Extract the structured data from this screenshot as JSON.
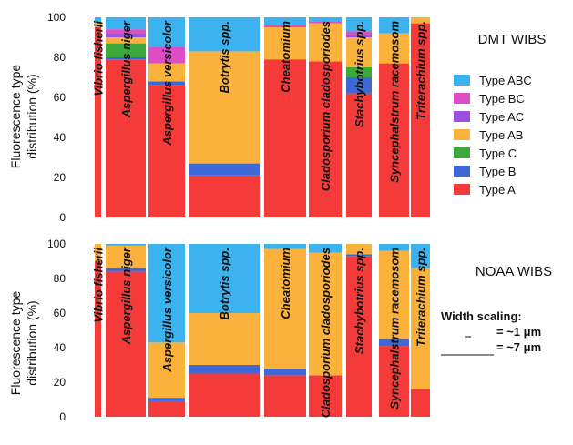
{
  "ylabel_line1": "Fluorescence type",
  "ylabel_line2": "distribution (%)",
  "colors": {
    "Type A": "#f53a3a",
    "Type B": "#3e68d8",
    "Type C": "#3aa83a",
    "Type AB": "#fbb23c",
    "Type AC": "#9a4fe0",
    "Type BC": "#dd4dc6",
    "Type ABC": "#3cb3ef"
  },
  "legend": {
    "entries": [
      "Type ABC",
      "Type BC",
      "Type AC",
      "Type AB",
      "Type C",
      "Type B",
      "Type A"
    ]
  },
  "width_scaling": {
    "title": "Width scaling:",
    "small": "= ~1 μm",
    "large": "= ~7 μm"
  },
  "chart_data": [
    {
      "type": "bar",
      "stacked": true,
      "variable_width": true,
      "title": "DMT WIBS",
      "ylabel": "Fluorescence type distribution (%)",
      "ylim": [
        0,
        100
      ],
      "yticks": [
        0,
        20,
        40,
        60,
        80,
        100
      ],
      "stack_order": [
        "Type A",
        "Type B",
        "Type C",
        "Type AB",
        "Type AC",
        "Type BC",
        "Type ABC"
      ],
      "categories": [
        {
          "name": "Vibrio fisherii",
          "size_um": 1,
          "values": {
            "Type A": 95,
            "Type B": 0,
            "Type C": 0,
            "Type AB": 2,
            "Type AC": 0,
            "Type BC": 0,
            "Type ABC": 3
          }
        },
        {
          "name": "Aspergillus niger",
          "size_um": 3.5,
          "values": {
            "Type A": 79,
            "Type B": 1,
            "Type C": 7,
            "Type AB": 3,
            "Type AC": 2,
            "Type BC": 2,
            "Type ABC": 6
          }
        },
        {
          "name": "Aspergillus versicolor",
          "size_um": 3,
          "values": {
            "Type A": 66,
            "Type B": 2,
            "Type C": 0,
            "Type AB": 9,
            "Type AC": 0,
            "Type BC": 8,
            "Type ABC": 15
          }
        },
        {
          "name": "Botrytis  spp.",
          "size_um": 7,
          "values": {
            "Type A": 21,
            "Type B": 6,
            "Type C": 0,
            "Type AB": 56,
            "Type AC": 0,
            "Type BC": 0,
            "Type ABC": 17
          }
        },
        {
          "name": "Cheatomium",
          "size_um": 4.5,
          "values": {
            "Type A": 79,
            "Type B": 0,
            "Type C": 0,
            "Type AB": 16,
            "Type AC": 0,
            "Type BC": 1,
            "Type ABC": 4
          }
        },
        {
          "name": "Cladosporium cladosporiodes",
          "size_um": 2.5,
          "values": {
            "Type A": 78,
            "Type B": 0,
            "Type C": 0,
            "Type AB": 19,
            "Type AC": 0,
            "Type BC": 1,
            "Type ABC": 2
          }
        },
        {
          "name": "Stachybotrius spp.",
          "size_um": 2.5,
          "values": {
            "Type A": 62,
            "Type B": 8,
            "Type C": 5,
            "Type AB": 15,
            "Type AC": 1,
            "Type BC": 2,
            "Type ABC": 7
          }
        },
        {
          "name": "Syncephalstrum racemosom",
          "size_um": 3.5,
          "values": {
            "Type A": 77,
            "Type B": 0,
            "Type C": 0,
            "Type AB": 15,
            "Type AC": 0,
            "Type BC": 0,
            "Type ABC": 8
          }
        },
        {
          "name": "Triterachium spp.",
          "size_um": 2,
          "values": {
            "Type A": 97,
            "Type B": 0,
            "Type C": 0,
            "Type AB": 3,
            "Type AC": 0,
            "Type BC": 0,
            "Type ABC": 0
          }
        }
      ]
    },
    {
      "type": "bar",
      "stacked": true,
      "variable_width": true,
      "title": "NOAA WIBS",
      "ylabel": "Fluorescence type distribution (%)",
      "ylim": [
        0,
        100
      ],
      "yticks": [
        0,
        20,
        40,
        60,
        80,
        100
      ],
      "stack_order": [
        "Type A",
        "Type B",
        "Type C",
        "Type AB",
        "Type AC",
        "Type BC",
        "Type ABC"
      ],
      "categories": [
        {
          "name": "Vibrio fisherii",
          "size_um": 1,
          "values": {
            "Type A": 90,
            "Type B": 0,
            "Type C": 0,
            "Type AB": 10,
            "Type AC": 0,
            "Type BC": 0,
            "Type ABC": 0
          }
        },
        {
          "name": "Aspergillus niger",
          "size_um": 3.5,
          "values": {
            "Type A": 84,
            "Type B": 2,
            "Type C": 0,
            "Type AB": 13,
            "Type AC": 0,
            "Type BC": 0,
            "Type ABC": 1
          }
        },
        {
          "name": "Aspergillus versicolor",
          "size_um": 3,
          "values": {
            "Type A": 9,
            "Type B": 2,
            "Type C": 0,
            "Type AB": 32,
            "Type AC": 0,
            "Type BC": 0,
            "Type ABC": 57
          }
        },
        {
          "name": "Botrytis  spp.",
          "size_um": 7,
          "values": {
            "Type A": 25,
            "Type B": 5,
            "Type C": 0,
            "Type AB": 30,
            "Type AC": 0,
            "Type BC": 0,
            "Type ABC": 40
          }
        },
        {
          "name": "Cheatomium",
          "size_um": 4.5,
          "values": {
            "Type A": 24,
            "Type B": 4,
            "Type C": 0,
            "Type AB": 69,
            "Type AC": 0,
            "Type BC": 0,
            "Type ABC": 3
          }
        },
        {
          "name": "Cladosporium cladosporiodes",
          "size_um": 2.5,
          "values": {
            "Type A": 24,
            "Type B": 0,
            "Type C": 0,
            "Type AB": 71,
            "Type AC": 0,
            "Type BC": 0,
            "Type ABC": 5
          }
        },
        {
          "name": "Stachybotrius spp.",
          "size_um": 2.5,
          "values": {
            "Type A": 93,
            "Type B": 1,
            "Type C": 0,
            "Type AB": 6,
            "Type AC": 0,
            "Type BC": 0,
            "Type ABC": 0
          }
        },
        {
          "name": "Syncephalstrum racemosom",
          "size_um": 3.5,
          "values": {
            "Type A": 41,
            "Type B": 4,
            "Type C": 0,
            "Type AB": 51,
            "Type AC": 0,
            "Type BC": 0,
            "Type ABC": 4
          }
        },
        {
          "name": "Triterachium spp.",
          "size_um": 2,
          "values": {
            "Type A": 16,
            "Type B": 0,
            "Type C": 0,
            "Type AB": 70,
            "Type AC": 0,
            "Type BC": 0,
            "Type ABC": 14
          }
        }
      ]
    }
  ]
}
